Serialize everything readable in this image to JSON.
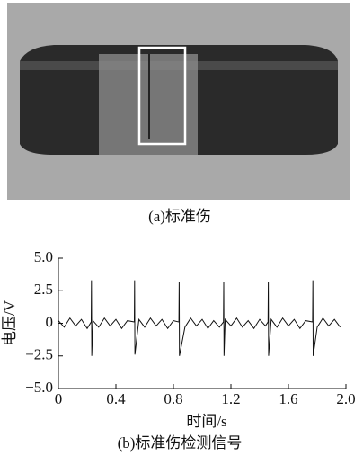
{
  "caption_a": "(a)标准伤",
  "chart_data": {
    "type": "line",
    "caption": "(b)标准伤检测信号",
    "xlabel": "时间/s",
    "ylabel": "电压/V",
    "xlim": [
      0,
      2.0
    ],
    "ylim": [
      -5,
      5
    ],
    "xticks": [
      0,
      0.4,
      0.8,
      1.2,
      1.6,
      {
        "value": 2,
        "label": "2.0"
      }
    ],
    "yticks": [
      {
        "value": 5,
        "label": "5.0"
      },
      2.5,
      0,
      {
        "value": -2.5,
        "label": "−2.5"
      },
      {
        "value": -5,
        "label": "−5.0"
      }
    ],
    "color": "#111",
    "x": [
      0,
      0.04,
      0.08,
      0.12,
      0.16,
      0.2,
      0.228,
      0.23,
      0.232,
      0.24,
      0.28,
      0.32,
      0.36,
      0.4,
      0.44,
      0.48,
      0.528,
      0.53,
      0.532,
      0.56,
      0.6,
      0.64,
      0.68,
      0.72,
      0.76,
      0.8,
      0.838,
      0.84,
      0.842,
      0.88,
      0.92,
      0.96,
      1.0,
      1.04,
      1.08,
      1.12,
      1.148,
      1.15,
      1.152,
      1.16,
      1.2,
      1.24,
      1.28,
      1.32,
      1.36,
      1.4,
      1.44,
      1.458,
      1.46,
      1.462,
      1.48,
      1.52,
      1.56,
      1.6,
      1.64,
      1.68,
      1.72,
      1.768,
      1.77,
      1.772,
      1.8,
      1.84,
      1.88,
      1.92,
      1.96
    ],
    "values": [
      0.2,
      -0.3,
      0.4,
      -0.2,
      0.3,
      -0.4,
      0.1,
      3.3,
      -2.5,
      0.2,
      -0.3,
      0.4,
      -0.2,
      0.3,
      -0.4,
      0.2,
      0.1,
      3.3,
      -2.4,
      0.3,
      -0.3,
      0.4,
      -0.2,
      0.3,
      -0.4,
      0.2,
      0.1,
      3.2,
      -2.5,
      -0.3,
      0.4,
      -0.2,
      0.3,
      -0.4,
      0.2,
      -0.3,
      0.1,
      3.2,
      -2.5,
      0.3,
      -0.2,
      0.4,
      -0.3,
      0.2,
      -0.4,
      0.3,
      -0.2,
      0.1,
      3.2,
      -2.5,
      0.3,
      -0.3,
      0.4,
      -0.2,
      0.3,
      -0.4,
      0.2,
      0.1,
      3.3,
      -2.5,
      -0.3,
      0.4,
      -0.2,
      0.3,
      -0.3
    ]
  }
}
